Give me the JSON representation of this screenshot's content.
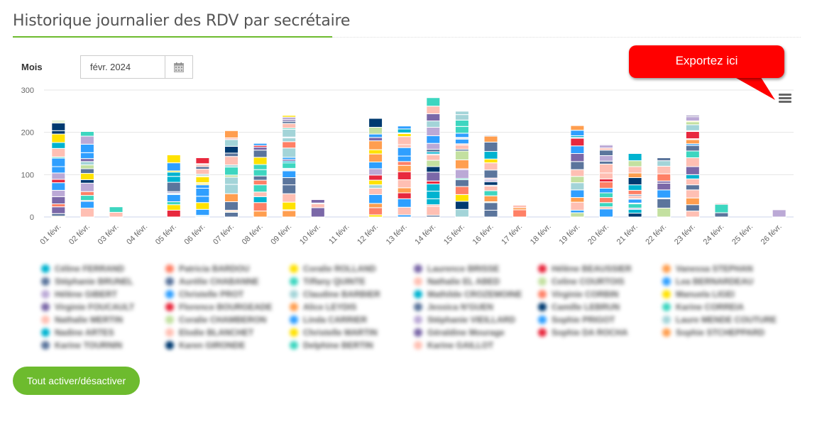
{
  "header": {
    "title": "Historique journalier des RDV par secrétaire"
  },
  "filter": {
    "month_label": "Mois",
    "month_value": "févr. 2024",
    "calendar_icon": "calendar-icon"
  },
  "callout": {
    "text": "Exportez ici"
  },
  "export_menu": {
    "icon": "hamburger-menu-icon"
  },
  "toggle_button": {
    "label": "Tout activer/désactiver"
  },
  "chart_data": {
    "type": "bar",
    "stacked": true,
    "title": "",
    "xlabel": "",
    "ylabel": "",
    "ylim": [
      0,
      300
    ],
    "yticks": [
      "0",
      "100",
      "200",
      "300"
    ],
    "grid": true,
    "legend": "bottom",
    "categories": [
      "01 févr.",
      "02 févr.",
      "03 févr.",
      "04 févr.",
      "05 févr.",
      "06 févr.",
      "07 févr.",
      "08 févr.",
      "09 févr.",
      "10 févr.",
      "11 févr.",
      "12 févr.",
      "13 févr.",
      "14 févr.",
      "15 févr.",
      "16 févr.",
      "17 févr.",
      "18 févr.",
      "19 févr.",
      "20 févr.",
      "21 févr.",
      "22 févr.",
      "23 févr.",
      "24 févr.",
      "25 févr.",
      "26 févr."
    ],
    "totals": [
      228,
      202,
      24,
      0,
      148,
      140,
      204,
      174,
      240,
      41,
      0,
      233,
      215,
      282,
      250,
      193,
      28,
      0,
      216,
      172,
      150,
      141,
      240,
      32,
      0,
      17
    ],
    "series": [
      {
        "name": "Céline FERRAND",
        "color": "#00b3d0"
      },
      {
        "name": "Stéphanie BRUNEL",
        "color": "#5b759c"
      },
      {
        "name": "Hélène GIBERT",
        "color": "#bba9d6"
      },
      {
        "name": "Virginie FOUCAULT",
        "color": "#7b68a8"
      },
      {
        "name": "Nathalie MERTIN",
        "color": "#ffbfb3"
      },
      {
        "name": "Nadine ARTES",
        "color": "#00b3d0"
      },
      {
        "name": "Karine TOURNIN",
        "color": "#5b759c"
      },
      {
        "name": "Patricia BARDOU",
        "color": "#ff8066"
      },
      {
        "name": "Aurélie CHABANNE",
        "color": "#5b759c"
      },
      {
        "name": "Christelle PROT",
        "color": "#2f9fff"
      },
      {
        "name": "Florence BOURGEADE",
        "color": "#e8293e"
      },
      {
        "name": "Coralie CHAMBERON",
        "color": "#c3e0a0"
      },
      {
        "name": "Elodie BLANCHET",
        "color": "#ffbfb3"
      },
      {
        "name": "Karen GIRONDE",
        "color": "#003a70"
      },
      {
        "name": "Coralie ROLLAND",
        "color": "#ffe200"
      },
      {
        "name": "Tiffany QUINTE",
        "color": "#3dd6c0"
      },
      {
        "name": "Claudine BARBIER",
        "color": "#a3d4d8"
      },
      {
        "name": "Alice LEYDIS",
        "color": "#ff9e4f"
      },
      {
        "name": "Linda CARRIER",
        "color": "#2f9fff"
      },
      {
        "name": "Christelle MARTIN",
        "color": "#ffe200"
      },
      {
        "name": "Delphine BERTIN",
        "color": "#3dd6c0"
      },
      {
        "name": "Laurence BRISSE",
        "color": "#7b68a8"
      },
      {
        "name": "Nathalie EL ABED",
        "color": "#ffbfb3"
      },
      {
        "name": "Mathilde CROZEMOINE",
        "color": "#00b3d0"
      },
      {
        "name": "Jessica N'GUEN",
        "color": "#5b759c"
      },
      {
        "name": "Stéphanie VIEILLARD",
        "color": "#bba9d6"
      },
      {
        "name": "Géraldine Mourage",
        "color": "#7b68a8"
      },
      {
        "name": "Karine GAILLOT",
        "color": "#ffbfb3"
      },
      {
        "name": "Hélène BEAUSSIER",
        "color": "#e8293e"
      },
      {
        "name": "Celine COURTOIS",
        "color": "#c3e0a0"
      },
      {
        "name": "Virginie CORBIN",
        "color": "#ff8066"
      },
      {
        "name": "Camille LEBRUN",
        "color": "#003a70"
      },
      {
        "name": "Sophie PRIGOT",
        "color": "#2f9fff"
      },
      {
        "name": "Sophie DA ROCHA",
        "color": "#e8293e"
      },
      {
        "name": "Vanessa STEPHAN",
        "color": "#ff9e4f"
      },
      {
        "name": "Lea BERNARDEAU",
        "color": "#2f9fff"
      },
      {
        "name": "Manuela LIGEI",
        "color": "#ffe200"
      },
      {
        "name": "Karine CORREIA",
        "color": "#3dd6c0"
      },
      {
        "name": "Laure MENDE COUTURE",
        "color": "#a3d4d8"
      },
      {
        "name": "Sophie STCHEPPARD",
        "color": "#ff9e4f"
      }
    ]
  }
}
